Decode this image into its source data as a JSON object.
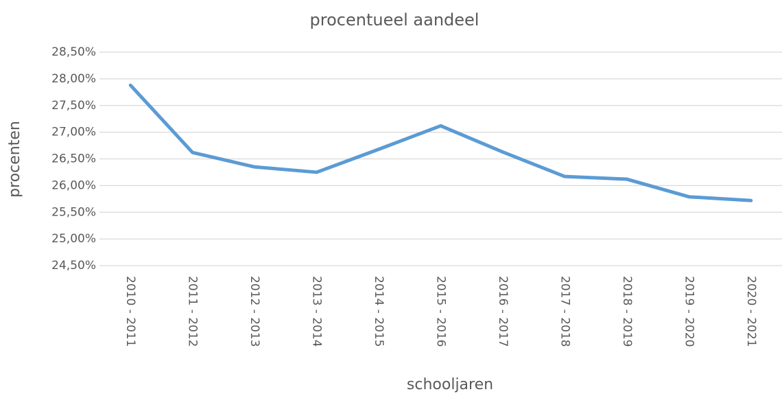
{
  "chart_data": {
    "type": "line",
    "title": "procentueel aandeel",
    "x_label": "schooljaren",
    "y_label": "procenten",
    "categories": [
      "2010 - 2011",
      "2011 - 2012",
      "2012 - 2013",
      "2013 - 2014",
      "2014 - 2015",
      "2015 - 2016",
      "2016 - 2017",
      "2017 - 2018",
      "2018 - 2019",
      "2019 - 2020",
      "2020 - 2021"
    ],
    "series": [
      {
        "name": "procentueel aandeel",
        "color": "#5b9bd5",
        "values": [
          27.88,
          26.62,
          26.35,
          26.25,
          26.68,
          27.12,
          26.63,
          26.17,
          26.12,
          25.79,
          25.72
        ]
      }
    ],
    "ylim": [
      24.5,
      28.5
    ],
    "yticks": [
      {
        "value": 24.5,
        "label": "24,50%"
      },
      {
        "value": 25,
        "label": "25,00%"
      },
      {
        "value": 25.5,
        "label": "25,50%"
      },
      {
        "value": 26,
        "label": "26,00%"
      },
      {
        "value": 26.5,
        "label": "26,50%"
      },
      {
        "value": 27,
        "label": "27,00%"
      },
      {
        "value": 27.5,
        "label": "27,50%"
      },
      {
        "value": 28,
        "label": "28,00%"
      },
      {
        "value": 28.5,
        "label": "28,50%"
      }
    ],
    "grid": true
  }
}
